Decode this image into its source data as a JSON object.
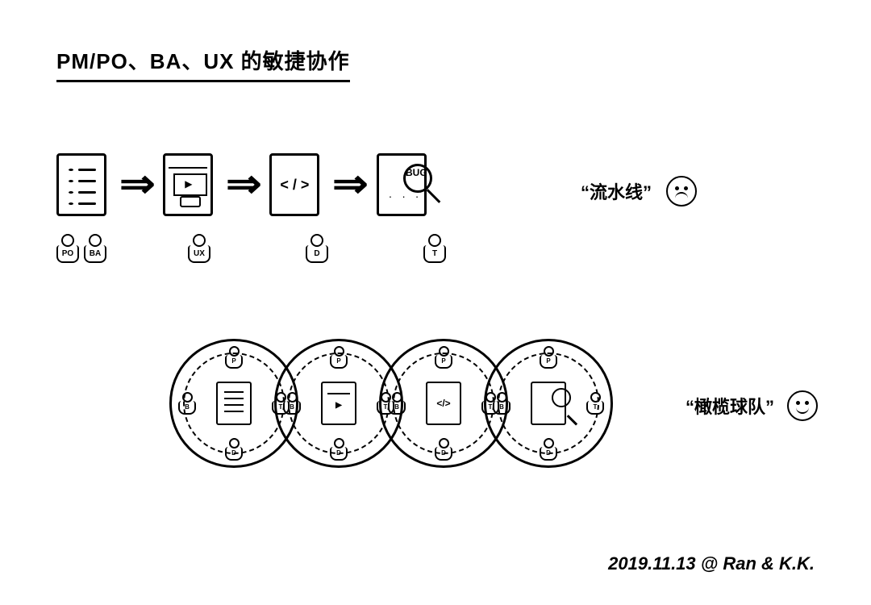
{
  "title": "PM/PO、BA、UX 的敏捷协作",
  "colors": {
    "ink": "#000000",
    "bg": "#ffffff"
  },
  "pipeline": {
    "label": "“流水线”",
    "mood": "sad",
    "stages": [
      {
        "artifact": "list",
        "roles": [
          "PO",
          "BA"
        ]
      },
      {
        "artifact": "ui",
        "roles": [
          "UX"
        ]
      },
      {
        "artifact": "code",
        "code_glyph": "< / >",
        "roles": [
          "D"
        ]
      },
      {
        "artifact": "test",
        "roles": [
          "T"
        ]
      }
    ],
    "arrow_glyph": "⇒"
  },
  "rugby": {
    "label": "“橄榄球队”",
    "mood": "happy",
    "rings": [
      {
        "center": "list",
        "roles": {
          "top": "P",
          "left": "B",
          "right": "T",
          "bottom": "D"
        }
      },
      {
        "center": "ui",
        "roles": {
          "top": "P",
          "left": "B",
          "right": "T",
          "bottom": "D"
        }
      },
      {
        "center": "code",
        "code_glyph": "</>",
        "roles": {
          "top": "P",
          "left": "B",
          "right": "T",
          "bottom": "D"
        }
      },
      {
        "center": "test",
        "roles": {
          "top": "P",
          "left": "B",
          "right": "T",
          "bottom": "D"
        }
      }
    ]
  },
  "signature": "2019.11.13  @ Ran & K.K.",
  "style": {
    "title_fontsize": 26,
    "label_fontsize": 22,
    "stroke_width": 3,
    "ring_diameter": 160,
    "ring_overlap": 30,
    "artifact_w": 62,
    "artifact_h": 78
  }
}
